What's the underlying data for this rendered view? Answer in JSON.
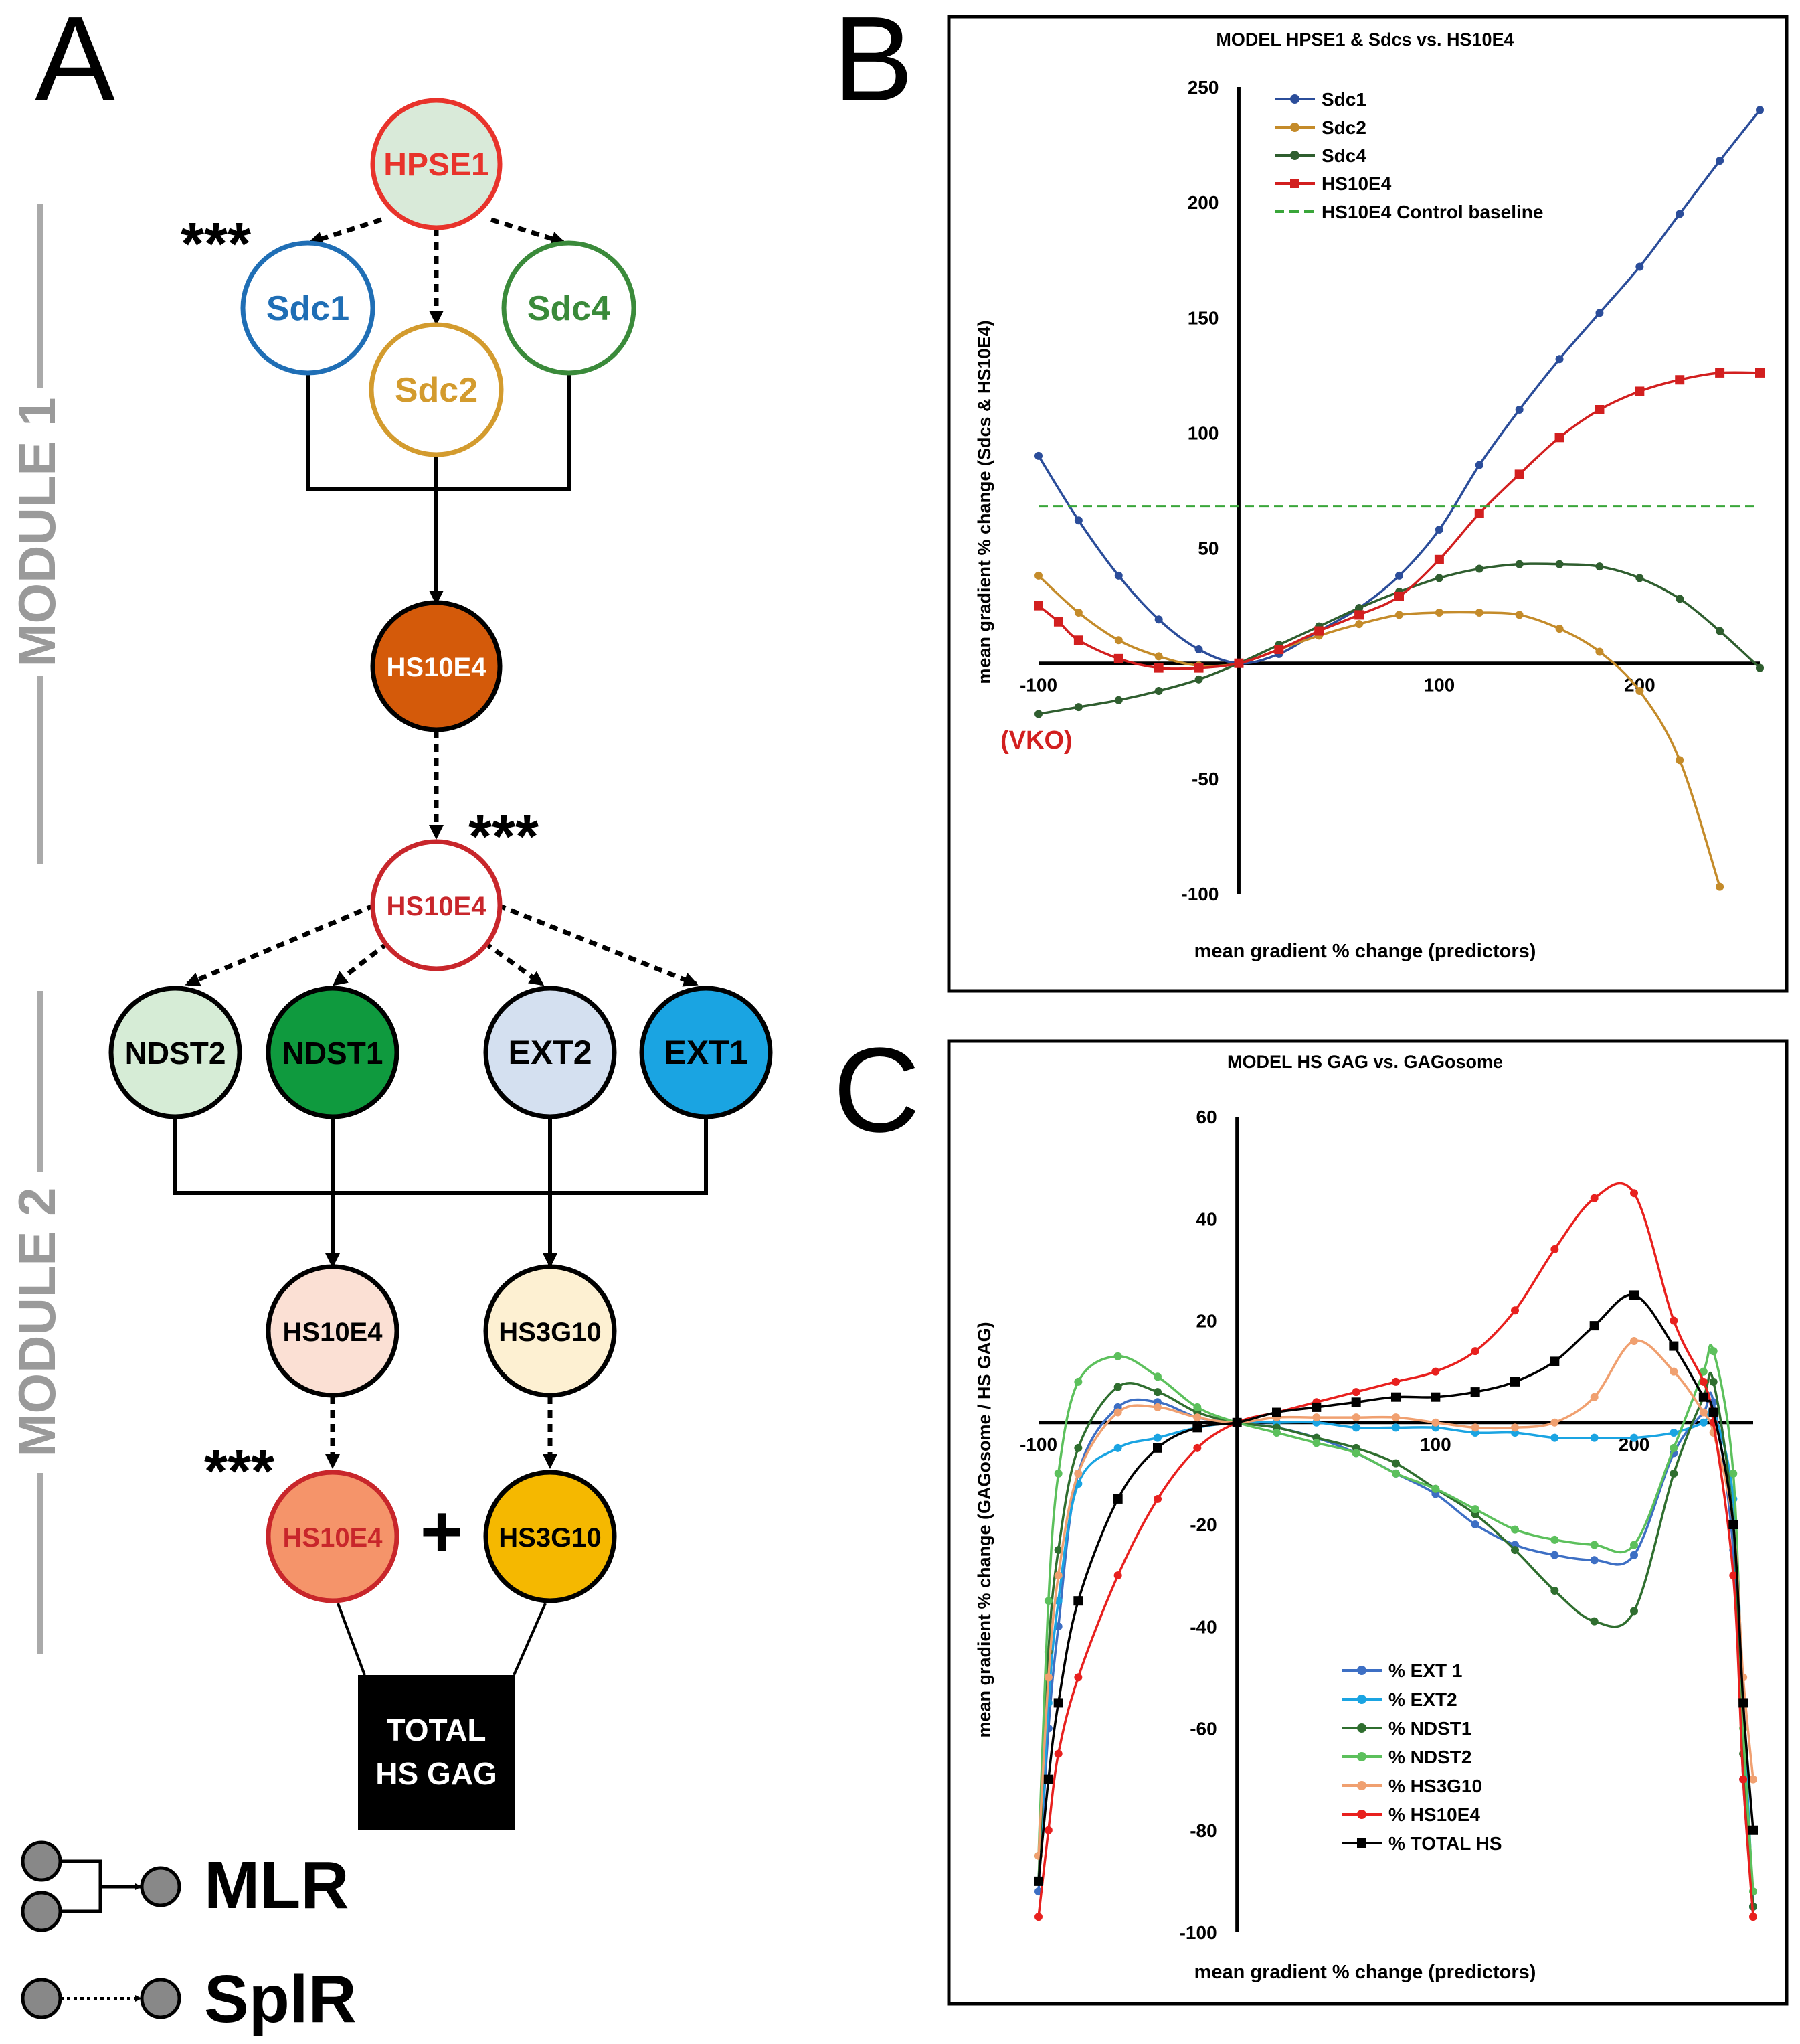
{
  "panel_a": {
    "letter": "A",
    "module1_label": "MODULE 1",
    "module2_label": "MODULE 2",
    "stars": "***",
    "nodes": {
      "hpse1": "HPSE1",
      "sdc1": "Sdc1",
      "sdc2": "Sdc2",
      "sdc4": "Sdc4",
      "hs10e4_m1": "HS10E4",
      "hs10e4_top": "HS10E4",
      "ndst2": "NDST2",
      "ndst1": "NDST1",
      "ext2": "EXT2",
      "ext1": "EXT1",
      "hs10e4_mid": "HS10E4",
      "hs3g10_mid": "HS3G10",
      "hs10e4_bot": "HS10E4",
      "hs3g10_bot": "HS3G10",
      "total_line1": "TOTAL",
      "total_line2": "HS GAG"
    },
    "plus": "+",
    "legend": {
      "mlr": "MLR",
      "splr": "SplR"
    },
    "colors": {
      "hpse1": "#e8332b",
      "sdc1": "#1f6eb5",
      "sdc2": "#d39b2e",
      "sdc4": "#3a8a3a",
      "hs10e4_m1": "#d45a0a",
      "ndst2": "#d6ecd6",
      "ndst1": "#0f9a3e",
      "ext2": "#d4e0f0",
      "ext1": "#1aa4e2",
      "hs10e4_mid": "#fbe0d4",
      "hs3g10_mid": "#fdf0d2",
      "hs10e4_bot": "#f5946a",
      "hs3g10_bot": "#f5b800"
    }
  },
  "panel_b_letter": "B",
  "panel_c_letter": "C",
  "chart_data": [
    {
      "id": "B",
      "type": "line",
      "title": "MODEL HPSE1 & Sdcs vs. HS10E4",
      "xlabel": "mean gradient % change (predictors)",
      "ylabel": "mean gradient % change (Sdcs & HS10E4)",
      "xlim": [
        -100,
        260
      ],
      "ylim": [
        -100,
        250
      ],
      "xticks": [
        -100,
        100,
        200
      ],
      "xtick_labels": [
        "-100",
        "100",
        "200"
      ],
      "yticks": [
        -100,
        -50,
        50,
        100,
        150,
        200,
        250
      ],
      "ytick_labels": [
        "-100",
        "-50",
        "50",
        "100",
        "150",
        "200",
        "250"
      ],
      "annotation": "(VKO)",
      "series": [
        {
          "name": "Sdc1",
          "color": "#2b4d9a",
          "marker": "circle",
          "x": [
            -100,
            -80,
            -60,
            -40,
            -20,
            0,
            20,
            40,
            60,
            80,
            100,
            120,
            140,
            160,
            180,
            200,
            220,
            240,
            260
          ],
          "y": [
            90,
            62,
            38,
            19,
            6,
            0,
            4,
            14,
            24,
            38,
            58,
            86,
            110,
            132,
            152,
            172,
            195,
            218,
            240
          ]
        },
        {
          "name": "Sdc2",
          "color": "#c48b2a",
          "marker": "circle",
          "x": [
            -100,
            -80,
            -60,
            -40,
            -20,
            0,
            20,
            40,
            60,
            80,
            100,
            120,
            140,
            160,
            180,
            200,
            220,
            240
          ],
          "y": [
            38,
            22,
            10,
            3,
            -1,
            0,
            6,
            12,
            17,
            21,
            22,
            22,
            21,
            15,
            5,
            -12,
            -42,
            -97
          ]
        },
        {
          "name": "Sdc4",
          "color": "#2f5e2f",
          "marker": "circle",
          "x": [
            -100,
            -80,
            -60,
            -40,
            -20,
            0,
            20,
            40,
            60,
            80,
            100,
            120,
            140,
            160,
            180,
            200,
            220,
            240,
            260
          ],
          "y": [
            -22,
            -19,
            -16,
            -12,
            -7,
            0,
            8,
            16,
            24,
            31,
            37,
            41,
            43,
            43,
            42,
            37,
            28,
            14,
            -2
          ]
        },
        {
          "name": "HS10E4",
          "color": "#d21f1f",
          "marker": "square",
          "x": [
            -100,
            -90,
            -80,
            -60,
            -40,
            -20,
            0,
            20,
            40,
            60,
            80,
            100,
            120,
            140,
            160,
            180,
            200,
            220,
            240,
            260
          ],
          "y": [
            25,
            18,
            10,
            2,
            -2,
            -2,
            0,
            6,
            14,
            21,
            29,
            45,
            65,
            82,
            98,
            110,
            118,
            123,
            126,
            126
          ]
        },
        {
          "name": "HS10E4 Control baseline",
          "color": "#3aa63a",
          "dashed": true,
          "x": [
            -100,
            260
          ],
          "y": [
            68,
            68
          ]
        }
      ]
    },
    {
      "id": "C",
      "type": "line",
      "title": "MODEL HS GAG vs. GAGosome",
      "xlabel": "mean gradient % change (predictors)",
      "ylabel": "mean gradient % change (GAGosome / HS GAG)",
      "xlim": [
        -100,
        260
      ],
      "ylim": [
        -100,
        60
      ],
      "xticks": [
        -100,
        100,
        200
      ],
      "xtick_labels": [
        "-100",
        "100",
        "200"
      ],
      "yticks": [
        -100,
        -80,
        -60,
        -40,
        -20,
        20,
        40,
        60
      ],
      "ytick_labels": [
        "-100",
        "-80",
        "-60",
        "-40",
        "-20",
        "20",
        "40",
        "60"
      ],
      "series": [
        {
          "name": "% EXT 1",
          "color": "#3d6fc4",
          "marker": "circle",
          "x": [
            -100,
            -95,
            -90,
            -80,
            -60,
            -40,
            -20,
            0,
            20,
            40,
            60,
            80,
            100,
            120,
            140,
            160,
            180,
            200,
            220,
            235,
            240,
            250,
            255,
            260
          ],
          "y": [
            -92,
            -60,
            -40,
            -10,
            3,
            4,
            1,
            0,
            -1,
            -3,
            -6,
            -10,
            -14,
            -20,
            -24,
            -26,
            -27,
            -26,
            -6,
            2,
            4,
            -25,
            -70,
            -95
          ]
        },
        {
          "name": "% EXT2",
          "color": "#1aa4e2",
          "marker": "circle",
          "x": [
            -100,
            -95,
            -90,
            -80,
            -60,
            -40,
            -20,
            0,
            20,
            40,
            60,
            80,
            100,
            120,
            140,
            160,
            180,
            200,
            220,
            235,
            240,
            250,
            255,
            260
          ],
          "y": [
            -90,
            -55,
            -35,
            -12,
            -5,
            -3,
            -1,
            0,
            0,
            0,
            -1,
            -1,
            -1,
            -2,
            -2,
            -3,
            -3,
            -3,
            -2,
            0,
            2,
            -15,
            -55,
            -95
          ]
        },
        {
          "name": "% NDST1",
          "color": "#2f6e2f",
          "marker": "circle",
          "x": [
            -100,
            -95,
            -90,
            -80,
            -60,
            -40,
            -20,
            0,
            20,
            40,
            60,
            80,
            100,
            120,
            140,
            160,
            180,
            200,
            220,
            235,
            240,
            250,
            255,
            260
          ],
          "y": [
            -90,
            -45,
            -25,
            -5,
            7,
            6,
            2,
            0,
            -1,
            -3,
            -5,
            -8,
            -13,
            -18,
            -25,
            -33,
            -39,
            -37,
            -10,
            5,
            8,
            -20,
            -65,
            -95
          ]
        },
        {
          "name": "% NDST2",
          "color": "#5cc05c",
          "marker": "circle",
          "x": [
            -100,
            -95,
            -90,
            -80,
            -60,
            -40,
            -20,
            0,
            20,
            40,
            60,
            80,
            100,
            120,
            140,
            160,
            180,
            200,
            220,
            235,
            240,
            250,
            255,
            260
          ],
          "y": [
            -85,
            -35,
            -10,
            8,
            13,
            9,
            3,
            0,
            -2,
            -4,
            -6,
            -10,
            -13,
            -17,
            -21,
            -23,
            -24,
            -24,
            -5,
            10,
            14,
            -10,
            -60,
            -92
          ]
        },
        {
          "name": "% HS3G10",
          "color": "#f0a070",
          "marker": "circle",
          "x": [
            -100,
            -95,
            -90,
            -80,
            -60,
            -40,
            -20,
            0,
            20,
            40,
            60,
            80,
            100,
            120,
            140,
            160,
            180,
            200,
            220,
            235,
            240,
            250,
            255,
            260
          ],
          "y": [
            -85,
            -50,
            -30,
            -10,
            2,
            3,
            1,
            0,
            1,
            1,
            1,
            1,
            0,
            -1,
            -1,
            0,
            5,
            16,
            10,
            2,
            -2,
            -20,
            -50,
            -70
          ]
        },
        {
          "name": "% HS10E4",
          "color": "#e8201e",
          "marker": "circle",
          "x": [
            -100,
            -95,
            -90,
            -80,
            -60,
            -40,
            -20,
            0,
            20,
            40,
            60,
            80,
            100,
            120,
            140,
            160,
            180,
            200,
            220,
            235,
            240,
            250,
            255,
            260
          ],
          "y": [
            -97,
            -80,
            -65,
            -50,
            -30,
            -15,
            -5,
            0,
            2,
            4,
            6,
            8,
            10,
            14,
            22,
            34,
            44,
            45,
            20,
            8,
            0,
            -30,
            -70,
            -97
          ]
        },
        {
          "name": "% TOTAL HS",
          "color": "#000000",
          "marker": "square",
          "x": [
            -100,
            -95,
            -90,
            -80,
            -60,
            -40,
            -20,
            0,
            20,
            40,
            60,
            80,
            100,
            120,
            140,
            160,
            180,
            200,
            220,
            235,
            240,
            250,
            255,
            260
          ],
          "y": [
            -90,
            -70,
            -55,
            -35,
            -15,
            -5,
            -1,
            0,
            2,
            3,
            4,
            5,
            5,
            6,
            8,
            12,
            19,
            25,
            15,
            5,
            2,
            -20,
            -55,
            -80
          ]
        }
      ]
    }
  ]
}
